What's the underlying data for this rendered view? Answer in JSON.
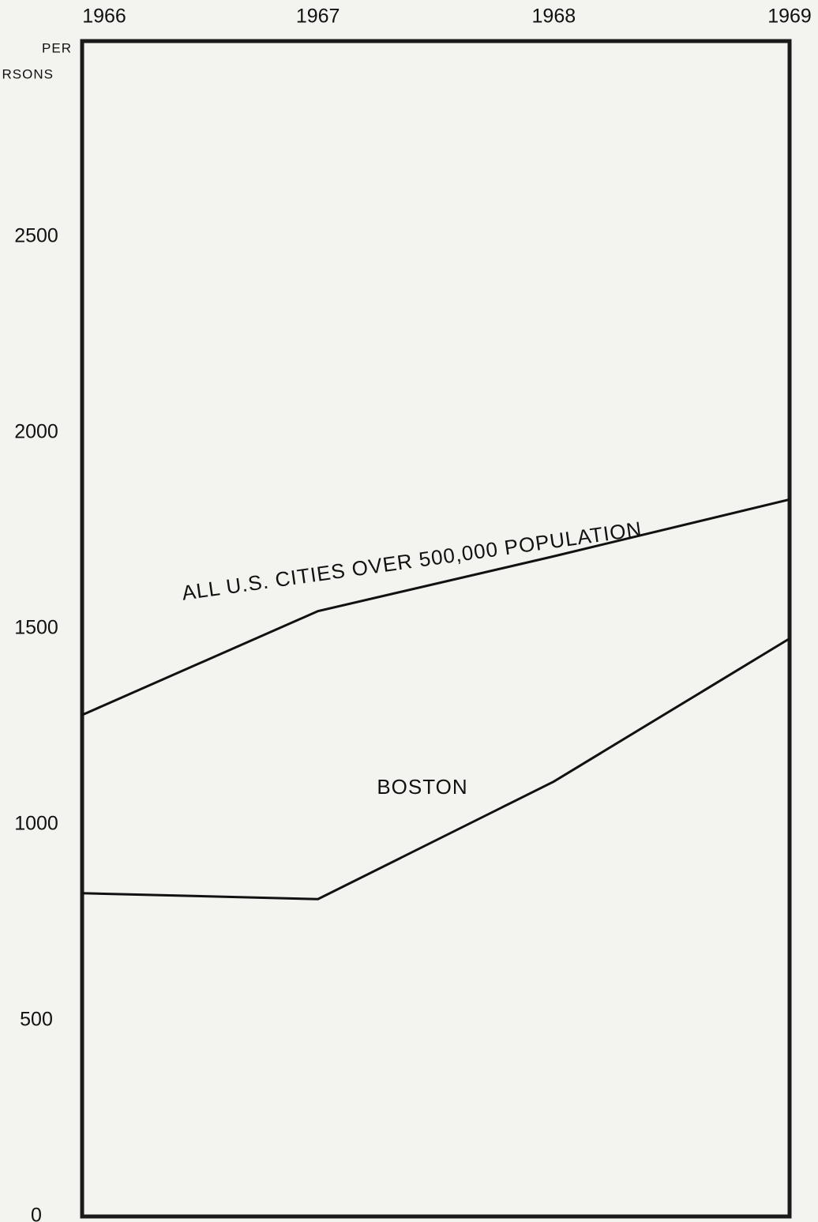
{
  "chart_data": {
    "type": "line",
    "y_label_lines": [
      "PER",
      "RSONS"
    ],
    "categories": [
      "1966",
      "1967",
      "1968",
      "1969"
    ],
    "series": [
      {
        "name": "ALL U.S. CITIES OVER 500,000 POPULATION",
        "color": "#111111",
        "values": [
          1280,
          1545,
          1685,
          1830
        ]
      },
      {
        "name": "BOSTON",
        "color": "#111111",
        "values": [
          825,
          810,
          1110,
          1475
        ]
      }
    ],
    "ylim": [
      0,
      3000
    ],
    "yticks": [
      0,
      500,
      1000,
      1500,
      2000,
      2500
    ],
    "grid": false
  }
}
